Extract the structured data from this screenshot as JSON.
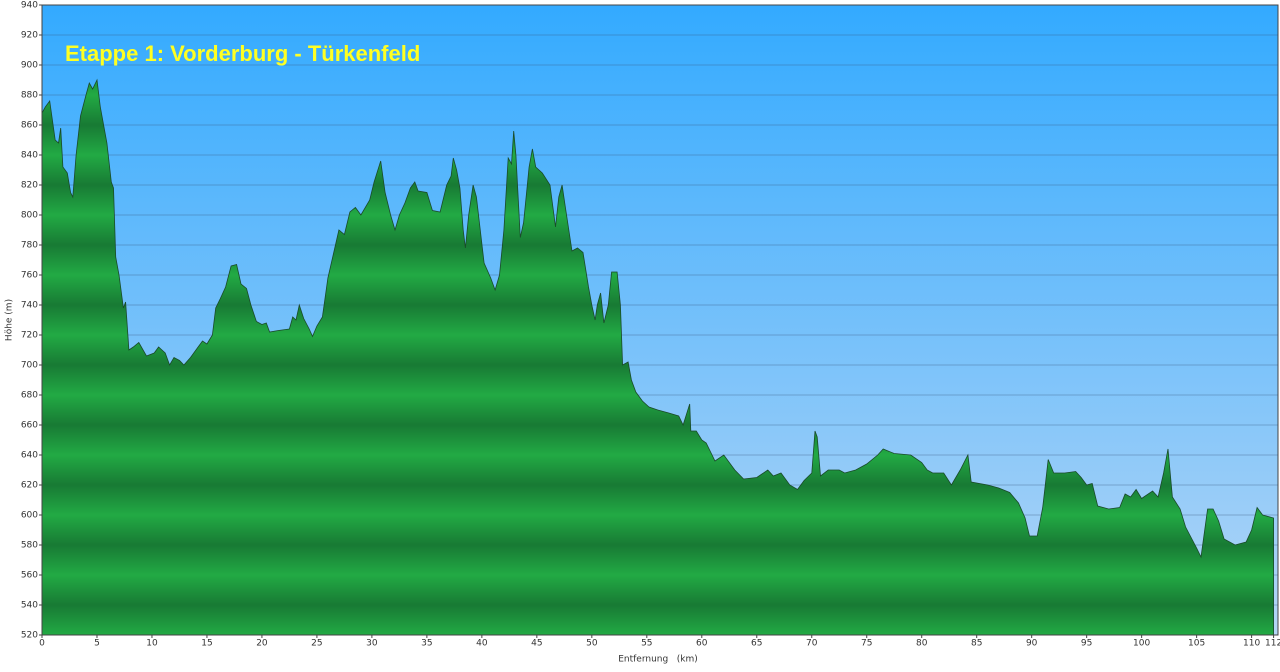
{
  "chart_data": {
    "type": "area",
    "title": "Etappe 1: Vorderburg - Türkenfeld",
    "xlabel": "Entfernung   (km)",
    "ylabel": "Höhe (m)",
    "color": "#22aa44",
    "grid": true,
    "xlim": [
      0,
      112.4
    ],
    "ylim": [
      520,
      940
    ],
    "xticks": [
      0,
      5,
      10,
      15,
      20,
      25,
      30,
      35,
      40,
      45,
      50,
      55,
      60,
      65,
      70,
      75,
      80,
      85,
      90,
      95,
      100,
      105,
      110,
      112
    ],
    "yticks": [
      520,
      540,
      560,
      580,
      600,
      620,
      640,
      660,
      680,
      700,
      720,
      740,
      760,
      780,
      800,
      820,
      840,
      860,
      880,
      900,
      920,
      940
    ],
    "x": [
      0,
      0.3,
      0.7,
      1.2,
      1.5,
      1.7,
      1.9,
      2.3,
      2.6,
      2.8,
      3.1,
      3.5,
      4.0,
      4.3,
      4.6,
      5.0,
      5.3,
      5.9,
      6.3,
      6.5,
      6.7,
      7.0,
      7.4,
      7.6,
      7.9,
      8.3,
      8.8,
      9.5,
      10.2,
      10.6,
      11.2,
      11.6,
      12.0,
      12.5,
      12.9,
      13.5,
      14.2,
      14.6,
      15.0,
      15.5,
      15.8,
      16.2,
      16.7,
      17.2,
      17.7,
      18.1,
      18.6,
      19.0,
      19.5,
      20.0,
      20.4,
      20.7,
      21.5,
      22.5,
      22.8,
      23.1,
      23.4,
      23.8,
      24.3,
      24.6,
      25.0,
      25.5,
      26.0,
      26.5,
      27.0,
      27.5,
      28.0,
      28.5,
      29.0,
      29.8,
      30.2,
      30.8,
      31.2,
      31.7,
      32.1,
      32.5,
      33.0,
      33.5,
      33.9,
      34.2,
      35.0,
      35.5,
      36.2,
      36.8,
      37.2,
      37.4,
      37.7,
      38.0,
      38.3,
      38.5,
      38.8,
      39.2,
      39.5,
      40.2,
      40.8,
      41.2,
      41.6,
      42.0,
      42.4,
      42.7,
      42.9,
      43.1,
      43.5,
      43.8,
      44.3,
      44.6,
      44.9,
      45.5,
      46.2,
      46.7,
      47.0,
      47.3,
      47.6,
      48.2,
      48.7,
      49.2,
      49.7,
      50.0,
      50.3,
      50.5,
      50.8,
      51.1,
      51.5,
      51.8,
      52.3,
      52.6,
      52.8,
      53.3,
      53.6,
      54.0,
      54.6,
      55.2,
      56.0,
      57.0,
      57.9,
      58.3,
      58.9,
      59.0,
      59.5,
      60.0,
      60.4,
      60.8,
      61.2,
      62.0,
      63.0,
      63.8,
      65.0,
      66.0,
      66.5,
      67.2,
      68.0,
      68.7,
      69.3,
      70.0,
      70.3,
      70.5,
      70.8,
      71.5,
      72.5,
      73.0,
      74.0,
      75.0,
      76.0,
      76.5,
      77.5,
      79.0,
      80.0,
      80.5,
      81.0,
      82.0,
      82.7,
      83.5,
      84.2,
      84.5,
      86.0,
      87.0,
      88.0,
      88.8,
      89.4,
      89.8,
      90.5,
      91.0,
      91.5,
      92.0,
      93.0,
      94.0,
      94.5,
      95.0,
      95.5,
      96.0,
      97.0,
      98.0,
      98.5,
      99.0,
      99.5,
      100.0,
      101.0,
      101.5,
      102.0,
      102.4,
      102.8,
      103.5,
      104.0,
      104.5,
      105.0,
      105.4,
      106.0,
      106.5,
      107.0,
      107.5,
      108.5,
      109.5,
      110.0,
      110.5,
      111.0,
      112.0
    ],
    "values": [
      868,
      872,
      876,
      850,
      848,
      858,
      832,
      828,
      815,
      812,
      840,
      866,
      880,
      888,
      884,
      890,
      872,
      848,
      822,
      818,
      772,
      760,
      738,
      742,
      710,
      712,
      715,
      706,
      708,
      712,
      708,
      700,
      705,
      703,
      700,
      705,
      712,
      716,
      714,
      720,
      738,
      744,
      752,
      766,
      767,
      754,
      751,
      740,
      729,
      727,
      728,
      722,
      723,
      724,
      732,
      730,
      740,
      731,
      724,
      719,
      726,
      732,
      758,
      774,
      790,
      787,
      802,
      805,
      800,
      810,
      822,
      836,
      815,
      800,
      790,
      800,
      808,
      818,
      822,
      816,
      815,
      803,
      802,
      820,
      826,
      838,
      830,
      818,
      790,
      778,
      800,
      820,
      812,
      768,
      758,
      750,
      760,
      790,
      838,
      834,
      856,
      840,
      785,
      795,
      832,
      844,
      832,
      828,
      820,
      792,
      812,
      820,
      805,
      776,
      778,
      775,
      752,
      740,
      730,
      740,
      748,
      728,
      740,
      762,
      762,
      740,
      700,
      702,
      690,
      682,
      676,
      672,
      670,
      668,
      666,
      660,
      674,
      656,
      656,
      650,
      648,
      642,
      636,
      640,
      630,
      624,
      625,
      630,
      626,
      628,
      620,
      617,
      623,
      628,
      656,
      652,
      626,
      630,
      630,
      628,
      630,
      634,
      640,
      644,
      641,
      640,
      635,
      630,
      628,
      628,
      620,
      630,
      640,
      622,
      620,
      618,
      615,
      608,
      598,
      586,
      586,
      605,
      637,
      628,
      628,
      629,
      625,
      620,
      621,
      606,
      604,
      605,
      614,
      612,
      617,
      611,
      616,
      612,
      628,
      644,
      612,
      604,
      592,
      585,
      578,
      572,
      604,
      604,
      596,
      584,
      580,
      582,
      590,
      605,
      600,
      598
    ]
  }
}
